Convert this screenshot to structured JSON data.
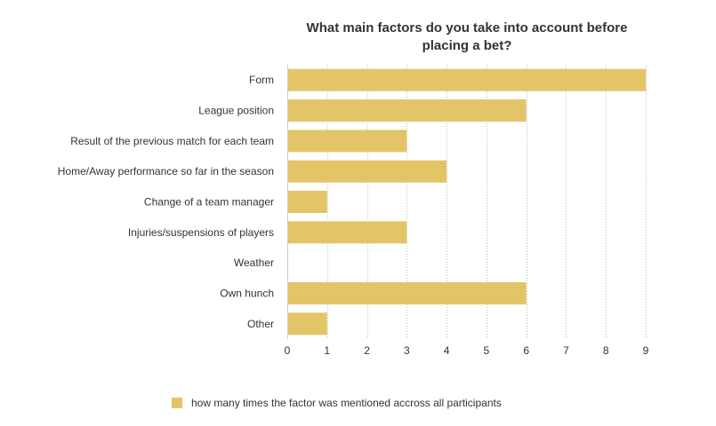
{
  "chart_data": {
    "type": "bar",
    "orientation": "horizontal",
    "title": "What main factors do you take into account before placing a bet?",
    "categories": [
      "Form",
      "League position",
      "Result of the previous match for each team",
      "Home/Away performance so far in the season",
      "Change of a team manager",
      "Injuries/suspensions of players",
      "Weather",
      "Own hunch",
      "Other"
    ],
    "series": [
      {
        "name": "how many times the factor was mentioned accross all participants",
        "values": [
          9,
          6,
          3,
          4,
          1,
          3,
          0,
          6,
          1
        ],
        "color": "#e3c567"
      }
    ],
    "xlim": [
      0,
      9
    ],
    "xticks": [
      0,
      1,
      2,
      3,
      4,
      5,
      6,
      7,
      8,
      9
    ],
    "grid": "vertical-dotted",
    "legend_position": "bottom-center"
  }
}
